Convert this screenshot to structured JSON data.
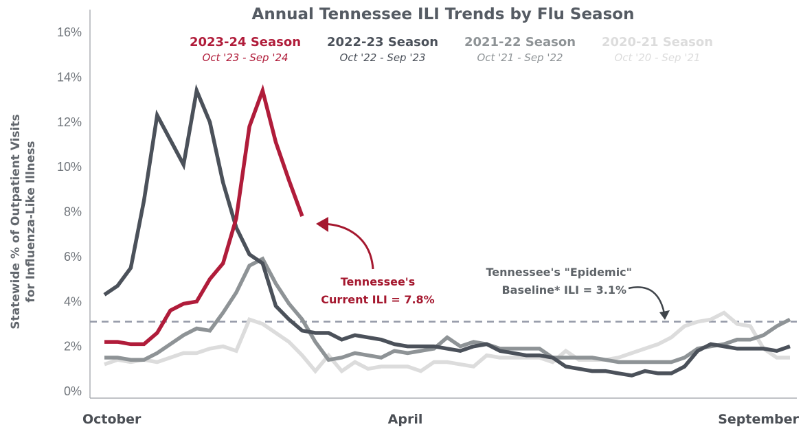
{
  "chart_data": {
    "type": "line",
    "title": "Annual Tennessee ILI Trends by Flu Season",
    "ylabel": [
      "Statewide % of Outpatient Visits",
      "for Influenza-Like Illness"
    ],
    "ylim": [
      0,
      16
    ],
    "yticks": [
      "0%",
      "2%",
      "4%",
      "6%",
      "8%",
      "10%",
      "12%",
      "14%",
      "16%"
    ],
    "xticks": [
      "October",
      "April",
      "September"
    ],
    "xtick_weeks": [
      0,
      23,
      52
    ],
    "grid": false,
    "legend_position": "top",
    "baseline": {
      "value": 3.1,
      "label": [
        "Tennessee's \"Epidemic\"",
        "Baseline* ILI = 3.1%"
      ]
    },
    "current_annotation": {
      "label": [
        "Tennessee's",
        "Current ILI = 7.8%"
      ],
      "value": 7.8
    },
    "series": [
      {
        "name": "2020-21 Season",
        "sub": "Oct '20 - Sep '21",
        "color": "#dcdcdc",
        "values": [
          1.2,
          1.4,
          1.3,
          1.4,
          1.3,
          1.5,
          1.7,
          1.7,
          1.9,
          2.0,
          1.8,
          3.2,
          3.0,
          2.6,
          2.2,
          1.6,
          0.9,
          1.6,
          0.9,
          1.3,
          1.0,
          1.1,
          1.1,
          1.1,
          0.9,
          1.3,
          1.3,
          1.2,
          1.1,
          1.6,
          1.5,
          1.5,
          1.5,
          1.5,
          1.3,
          1.8,
          1.4,
          1.4,
          1.4,
          1.5,
          1.7,
          1.9,
          2.1,
          2.4,
          2.9,
          3.1,
          3.2,
          3.5,
          3.0,
          2.9,
          1.9,
          1.5,
          1.5
        ]
      },
      {
        "name": "2021-22 Season",
        "sub": "Oct '21 - Sep '22",
        "color": "#8e9396",
        "values": [
          1.5,
          1.5,
          1.4,
          1.4,
          1.7,
          2.1,
          2.5,
          2.8,
          2.7,
          3.5,
          4.4,
          5.6,
          5.9,
          4.8,
          3.9,
          3.2,
          2.2,
          1.4,
          1.5,
          1.7,
          1.6,
          1.5,
          1.8,
          1.7,
          1.8,
          1.9,
          2.4,
          2.0,
          2.2,
          2.1,
          1.9,
          1.9,
          1.9,
          1.9,
          1.5,
          1.5,
          1.5,
          1.5,
          1.4,
          1.3,
          1.3,
          1.3,
          1.3,
          1.3,
          1.5,
          1.9,
          2.0,
          2.1,
          2.3,
          2.3,
          2.5,
          2.9,
          3.2
        ]
      },
      {
        "name": "2022-23 Season",
        "sub": "Oct '22 - Sep '23",
        "color": "#4b515a",
        "values": [
          4.3,
          4.7,
          5.5,
          8.5,
          12.3,
          11.2,
          10.1,
          13.4,
          12.0,
          9.3,
          7.3,
          6.1,
          5.7,
          3.8,
          3.2,
          2.7,
          2.6,
          2.6,
          2.3,
          2.5,
          2.4,
          2.3,
          2.1,
          2.0,
          2.0,
          2.0,
          1.9,
          1.8,
          2.0,
          2.1,
          1.8,
          1.7,
          1.6,
          1.6,
          1.5,
          1.1,
          1.0,
          0.9,
          0.9,
          0.8,
          0.7,
          0.9,
          0.8,
          0.8,
          1.1,
          1.8,
          2.1,
          2.0,
          1.9,
          1.9,
          1.9,
          1.8,
          2.0
        ]
      },
      {
        "name": "2023-24 Season",
        "sub": "Oct '23 - Sep '24",
        "color": "#b01c3a",
        "values": [
          2.2,
          2.2,
          2.1,
          2.1,
          2.6,
          3.6,
          3.9,
          4.0,
          5.0,
          5.7,
          7.7,
          11.8,
          13.4,
          11.1,
          9.4,
          7.8
        ]
      }
    ]
  }
}
